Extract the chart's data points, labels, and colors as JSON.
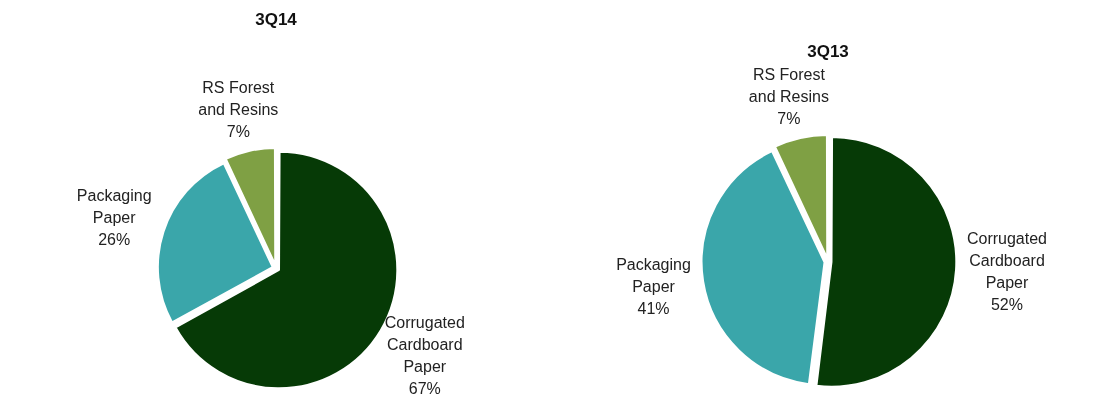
{
  "chart_data": [
    {
      "type": "pie",
      "title": "3Q14",
      "categories": [
        "Corrugated Cardboard Paper",
        "Packaging Paper",
        "RS Forest and Resins"
      ],
      "values": [
        67,
        26,
        7
      ],
      "value_labels": [
        "67%",
        "26%",
        "7%"
      ],
      "colors": [
        "#063a06",
        "#3aa6aa",
        "#7fa044"
      ],
      "legend": false
    },
    {
      "type": "pie",
      "title": "3Q13",
      "categories": [
        "Corrugated Cardboard Paper",
        "Packaging Paper",
        "RS Forest and Resins"
      ],
      "values": [
        52,
        41,
        7
      ],
      "value_labels": [
        "52%",
        "41%",
        "7%"
      ],
      "colors": [
        "#063a06",
        "#3aa6aa",
        "#7fa044"
      ],
      "legend": false
    }
  ]
}
